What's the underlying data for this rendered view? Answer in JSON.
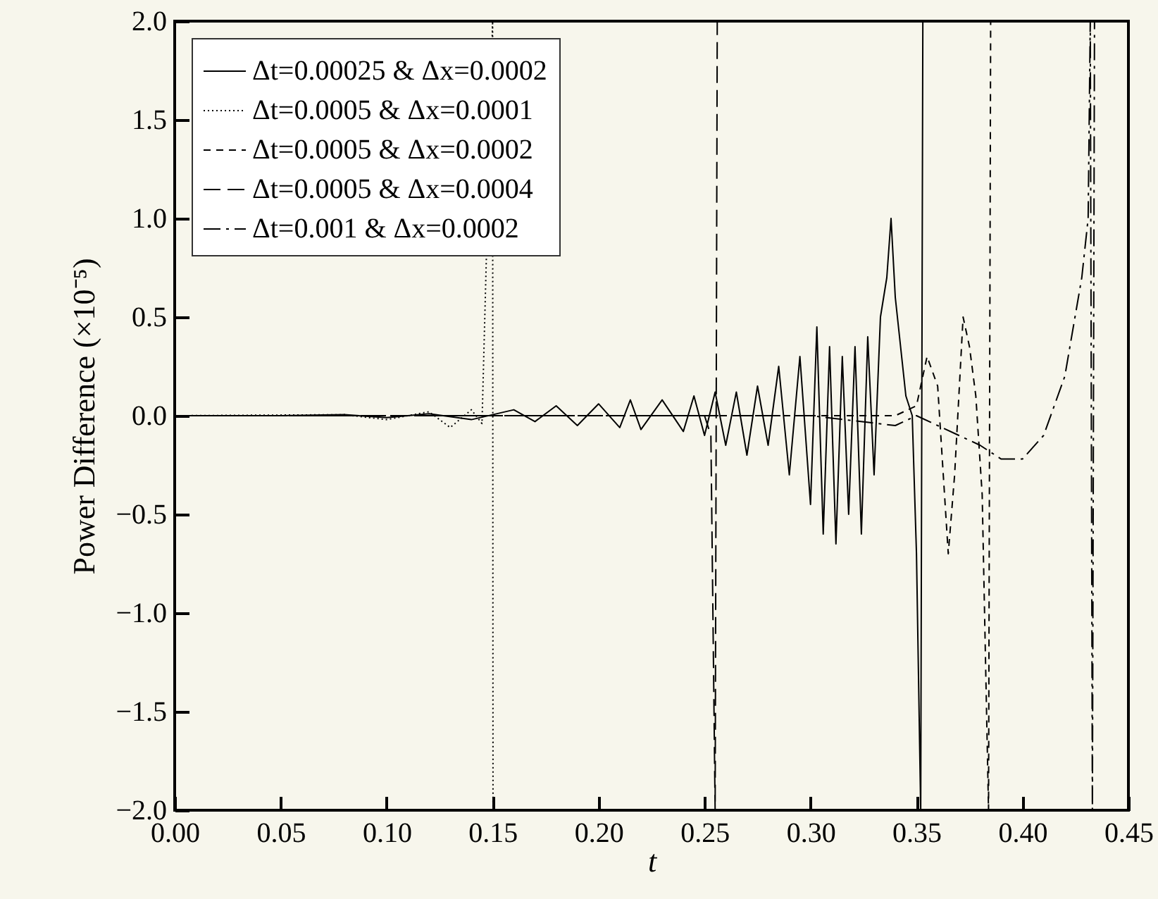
{
  "chart_data": {
    "type": "line",
    "xlabel": "t",
    "ylabel": "Power Difference (×10⁻⁵)",
    "xlim": [
      0,
      0.45
    ],
    "ylim": [
      -2.0,
      2.0
    ],
    "xticks": [
      {
        "value": 0,
        "label": "0.00"
      },
      0.05,
      {
        "value": 0.1,
        "label": "0.10"
      },
      0.15,
      {
        "value": 0.2,
        "label": "0.20"
      },
      0.25,
      {
        "value": 0.3,
        "label": "0.30"
      },
      0.35,
      {
        "value": 0.4,
        "label": "0.40"
      },
      0.45
    ],
    "yticks": [
      {
        "value": -2,
        "label": "−2.0"
      },
      {
        "value": -1.5,
        "label": "−1.5"
      },
      {
        "value": -1,
        "label": "−1.0"
      },
      {
        "value": -0.5,
        "label": "−0.5"
      },
      {
        "value": 0,
        "label": "0.0"
      },
      0.5,
      {
        "value": 1,
        "label": "1.0"
      },
      1.5,
      {
        "value": 2,
        "label": "2.0"
      }
    ],
    "grid": false,
    "legend": "top left",
    "marker": "none",
    "series": [
      {
        "name": "Δt=0.00025 & Δx=0.0002",
        "color": "#000000",
        "line_style": "solid",
        "x": [
          0,
          0.05,
          0.08,
          0.1,
          0.12,
          0.14,
          0.16,
          0.17,
          0.18,
          0.19,
          0.2,
          0.21,
          0.215,
          0.22,
          0.23,
          0.24,
          0.245,
          0.25,
          0.255,
          0.26,
          0.265,
          0.27,
          0.275,
          0.28,
          0.285,
          0.29,
          0.295,
          0.3,
          0.303,
          0.306,
          0.309,
          0.312,
          0.315,
          0.318,
          0.321,
          0.324,
          0.327,
          0.33,
          0.333,
          0.336,
          0.338,
          0.34,
          0.342,
          0.345,
          0.348,
          0.35,
          0.352,
          0.353
        ],
        "values": [
          0,
          0,
          0.005,
          -0.01,
          0.01,
          -0.02,
          0.03,
          -0.03,
          0.05,
          -0.05,
          0.06,
          -0.06,
          0.08,
          -0.07,
          0.08,
          -0.08,
          0.1,
          -0.1,
          0.12,
          -0.15,
          0.12,
          -0.2,
          0.15,
          -0.15,
          0.25,
          -0.3,
          0.3,
          -0.45,
          0.45,
          -0.6,
          0.35,
          -0.65,
          0.3,
          -0.5,
          0.35,
          -0.6,
          0.4,
          -0.3,
          0.5,
          0.7,
          1.0,
          0.6,
          0.4,
          0.1,
          0.0,
          -0.7,
          -2.0,
          2.0
        ]
      },
      {
        "name": "Δt=0.0005 & Δx=0.0001",
        "color": "#000000",
        "line_style": "dotted",
        "x": [
          0,
          0.08,
          0.1,
          0.12,
          0.13,
          0.14,
          0.145,
          0.15,
          0.1502
        ],
        "values": [
          0,
          0.005,
          -0.02,
          0.02,
          -0.06,
          0.03,
          -0.04,
          2.0,
          -2.0
        ]
      },
      {
        "name": "Δt=0.0005 & Δx=0.0002",
        "color": "#000000",
        "line_style": "dashed",
        "x": [
          0,
          0.2,
          0.3,
          0.34,
          0.35,
          0.355,
          0.36,
          0.365,
          0.368,
          0.372,
          0.375,
          0.378,
          0.381,
          0.384,
          0.385
        ],
        "values": [
          0,
          0,
          0,
          0,
          0.05,
          0.3,
          0.15,
          -0.7,
          -0.3,
          0.5,
          0.35,
          0.1,
          -0.4,
          -2.0,
          2.0
        ]
      },
      {
        "name": "Δt=0.0005 & Δx=0.0004",
        "color": "#000000",
        "line_style": "dashed",
        "x": [
          0,
          0.2,
          0.25,
          0.253,
          0.255,
          0.256
        ],
        "values": [
          0,
          0,
          0,
          -0.1,
          -2.0,
          2.0
        ]
      },
      {
        "name": "Δt=0.001 & Δx=0.0002",
        "color": "#000000",
        "line_style": "dashed",
        "x": [
          0,
          0.3,
          0.34,
          0.35,
          0.36,
          0.37,
          0.38,
          0.39,
          0.4,
          0.41,
          0.42,
          0.428,
          0.431,
          0.432,
          0.433,
          0.434
        ],
        "values": [
          0,
          0,
          -0.05,
          0,
          -0.05,
          -0.1,
          -0.15,
          -0.22,
          -0.22,
          -0.1,
          0.2,
          0.7,
          1.0,
          2.0,
          -2.0,
          2.0
        ]
      }
    ]
  }
}
